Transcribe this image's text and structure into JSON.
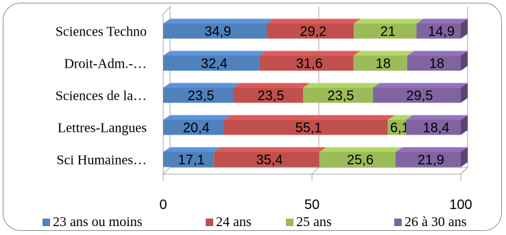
{
  "chart_data": {
    "type": "bar",
    "orientation": "horizontal",
    "stacked": true,
    "style": "3d",
    "categories": [
      "Sciences Techno",
      "Droit-Adm.-…",
      "Sciences de la…",
      "Lettres-Langues",
      "Sci Humaines…"
    ],
    "series": [
      {
        "name": "23 ans ou moins",
        "color": "#4f81bd",
        "values": [
          34.9,
          32.4,
          23.5,
          20.4,
          17.1
        ]
      },
      {
        "name": "24 ans",
        "color": "#c0504d",
        "values": [
          29.2,
          31.6,
          23.5,
          55.1,
          35.4
        ]
      },
      {
        "name": "25 ans",
        "color": "#9bbb59",
        "values": [
          21,
          18,
          23.5,
          6.1,
          25.6
        ]
      },
      {
        "name": "26 à 30 ans",
        "color": "#8064a2",
        "values": [
          14.9,
          18,
          29.5,
          18.4,
          21.9
        ]
      }
    ],
    "data_labels": [
      [
        "34,9",
        "32,4",
        "23,5",
        "20,4",
        "17,1"
      ],
      [
        "29,2",
        "31,6",
        "23,5",
        "55,1",
        "35,4"
      ],
      [
        "21",
        "18",
        "23,5",
        "6,1",
        "25,6"
      ],
      [
        "14,9",
        "18",
        "29,5",
        "18,4",
        "21,9"
      ]
    ],
    "xlim": [
      0,
      100
    ],
    "x_ticks": [
      "0",
      "50",
      "100"
    ],
    "grid": true,
    "legend_position": "bottom",
    "title": "",
    "xlabel": "",
    "ylabel": ""
  }
}
